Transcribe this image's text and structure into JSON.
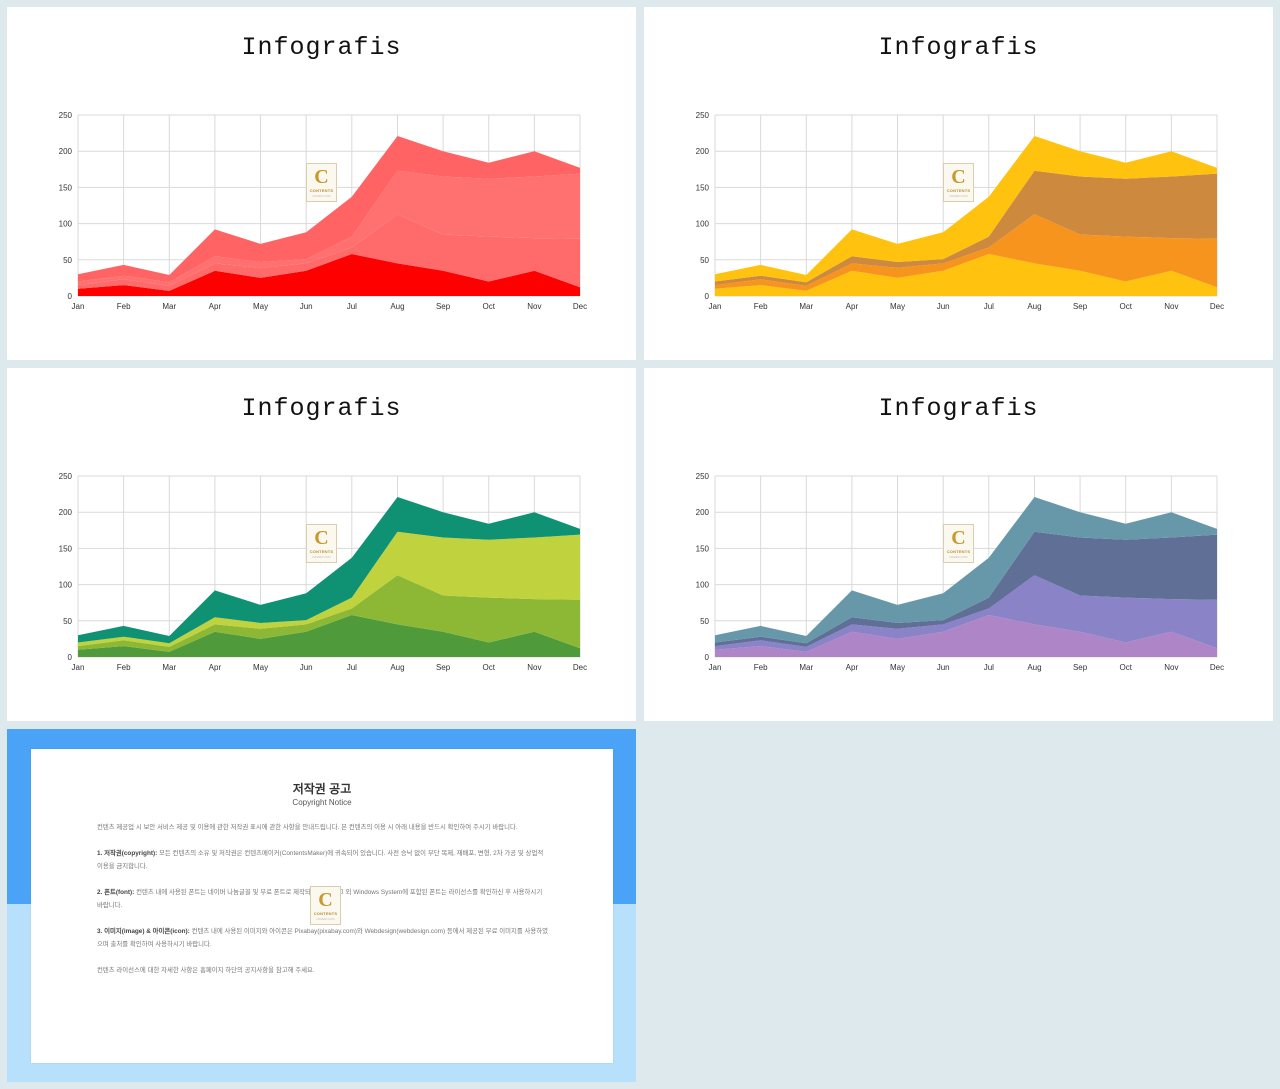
{
  "slides": [
    {
      "title": "Infografis",
      "palette": [
        "#ff0000",
        "#ff6b6b",
        "#ff7070",
        "#ff6363"
      ]
    },
    {
      "title": "Infografis",
      "palette": [
        "#ffc20e",
        "#f7941d",
        "#cd8a3f",
        "#ffc20e"
      ]
    },
    {
      "title": "Infografis",
      "palette": [
        "#4f9a3a",
        "#8cb836",
        "#c0d23d",
        "#0f9273"
      ]
    },
    {
      "title": "Infografis",
      "palette": [
        "#ae85c6",
        "#8a83c8",
        "#5f6f95",
        "#6798aa"
      ]
    }
  ],
  "logo": {
    "letter": "C",
    "word": "CONTENTS",
    "sub": "NAVER.COM"
  },
  "chart_data": {
    "type": "area",
    "stacked": true,
    "categories": [
      "Jan",
      "Feb",
      "Mar",
      "Apr",
      "May",
      "Jun",
      "Jul",
      "Aug",
      "Sep",
      "Oct",
      "Nov",
      "Dec"
    ],
    "ylim": [
      0,
      250
    ],
    "yticks": [
      "0",
      "50",
      "100",
      "150",
      "200",
      "250"
    ],
    "grid": true,
    "series": [
      {
        "values": [
          10,
          15,
          7,
          35,
          25,
          35,
          58,
          45,
          35,
          20,
          35,
          12
        ]
      },
      {
        "values": [
          5,
          8,
          7,
          10,
          14,
          10,
          9,
          68,
          50,
          62,
          45,
          67
        ]
      },
      {
        "values": [
          5,
          5,
          5,
          10,
          8,
          6,
          15,
          60,
          80,
          80,
          85,
          90
        ]
      },
      {
        "values": [
          10,
          15,
          10,
          37,
          25,
          37,
          55,
          48,
          35,
          22,
          35,
          8
        ]
      }
    ]
  },
  "copyright": {
    "title": "저작권 공고",
    "subtitle": "Copyright Notice",
    "paragraphs": [
      {
        "head": "",
        "text": "컨텐츠 제공업 시 보안 서비스 제공 및 이용에 관한 저작권 표시에 관한 사항을 안내드립니다. 본 컨텐츠의 이용 시 아래 내용을 반드시 확인하여 주시기 바랍니다."
      },
      {
        "head": "1. 저작권(copyright):",
        "text": " 모든 컨텐츠의 소유 및 저작권은 컨텐츠메이커(ContentsMaker)에 귀속되어 있습니다. 사전 승낙 없이 무단 복제, 재배포, 변형, 2차 가공 및 상업적 이용을 금지합니다."
      },
      {
        "head": "2. 폰트(font):",
        "text": " 컨텐츠 내에 사용된 폰트는 네이버 나눔글꼴 및 무료 폰트로 제작되었습니다. 그 외 Windows System에 포함된 폰트는 라이선스를 확인하신 후 사용하시기 바랍니다."
      },
      {
        "head": "3. 이미지(image) & 아이콘(icon):",
        "text": " 컨텐츠 내에 사용된 이미지와 아이콘은 Pixabay(pixabay.com)와 Webdesign(webdesign.com) 등에서 제공된 무료 이미지를 사용하였으며 출처를 확인하여 사용하시기 바랍니다."
      },
      {
        "head": "",
        "text": "컨텐츠 라이선스에 대한 자세한 사항은 홈페이지 하단의 공지사항을 참고해 주세요."
      }
    ]
  }
}
